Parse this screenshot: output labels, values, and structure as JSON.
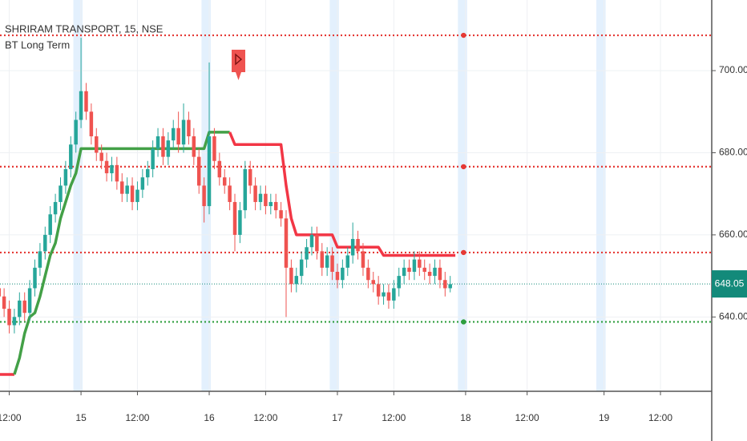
{
  "chart_data": {
    "type": "candlestick",
    "title": "SHRIRAM TRANSPORT, 15, NSE",
    "up_color": "#26a69a",
    "down_color": "#ef5350",
    "grid": true,
    "xlim": [
      -15.8,
      123
    ],
    "ylim": [
      621.9,
      717.2
    ],
    "xticks": [
      {
        "value": -14,
        "label": "12:00"
      },
      {
        "value": 0,
        "label": "15"
      },
      {
        "value": 11,
        "label": "12:00"
      },
      {
        "value": 25,
        "label": "16"
      },
      {
        "value": 36,
        "label": "12:00"
      },
      {
        "value": 50,
        "label": "17"
      },
      {
        "value": 61,
        "label": "12:00"
      },
      {
        "value": 75,
        "label": "18"
      },
      {
        "value": 87,
        "label": "12:00"
      },
      {
        "value": 102,
        "label": "19"
      },
      {
        "value": 113,
        "label": "12:00"
      }
    ],
    "yticks": [
      {
        "value": 640,
        "label": "640.00"
      },
      {
        "value": 660,
        "label": "660.00"
      },
      {
        "value": 680,
        "label": "680.00"
      },
      {
        "value": 700,
        "label": "700.00"
      }
    ],
    "x": [
      -16,
      -15,
      -14,
      -13,
      -12,
      -11,
      -10,
      -9,
      -8,
      -7,
      -6,
      -5,
      -4,
      -3,
      -2,
      -1,
      0,
      1,
      2,
      3,
      4,
      5,
      6,
      7,
      8,
      9,
      10,
      11,
      12,
      13,
      14,
      15,
      16,
      17,
      18,
      19,
      20,
      21,
      22,
      23,
      24,
      25,
      26,
      27,
      28,
      29,
      30,
      31,
      32,
      33,
      34,
      35,
      36,
      37,
      38,
      39,
      40,
      41,
      42,
      43,
      44,
      45,
      46,
      47,
      48,
      49,
      50,
      51,
      52,
      53,
      54,
      55,
      56,
      57,
      58,
      59,
      60,
      61,
      62,
      63,
      64,
      65,
      66,
      67,
      68,
      69,
      70,
      71,
      72
    ],
    "open": [
      647,
      645,
      642,
      638,
      640,
      644,
      641,
      647,
      652,
      656,
      660,
      665,
      668,
      672,
      676,
      682,
      688,
      695,
      690,
      684,
      680,
      678,
      675,
      677,
      673,
      670,
      672,
      668,
      671,
      674,
      676,
      681,
      684,
      679,
      683,
      686,
      682,
      688,
      684,
      679,
      672,
      667,
      684,
      678,
      674,
      672,
      668,
      660,
      666,
      676,
      672,
      668,
      670,
      667,
      668,
      666,
      664,
      652,
      648,
      650,
      654,
      657,
      660,
      656,
      652,
      655,
      651,
      649,
      652,
      655,
      659,
      656,
      652,
      649,
      648,
      645,
      646,
      644,
      647,
      650,
      652,
      651,
      654,
      652,
      651,
      650,
      652,
      649,
      647
    ],
    "high": [
      649,
      647,
      644,
      642,
      646,
      646,
      649,
      654,
      658,
      662,
      667,
      670,
      674,
      678,
      684,
      690,
      708,
      697,
      692,
      686,
      682,
      680,
      679,
      679,
      675,
      674,
      674,
      673,
      676,
      678,
      683,
      686,
      686,
      685,
      688,
      690,
      692,
      690,
      686,
      681,
      674,
      702,
      686,
      680,
      676,
      674,
      670,
      668,
      678,
      678,
      674,
      672,
      672,
      670,
      670,
      668,
      666,
      654,
      652,
      656,
      659,
      662,
      662,
      658,
      657,
      657,
      653,
      654,
      657,
      663,
      661,
      658,
      654,
      651,
      650,
      648,
      648,
      649,
      652,
      654,
      654,
      656,
      656,
      654,
      653,
      654,
      654,
      651,
      650
    ],
    "low": [
      643,
      640,
      636,
      636,
      638,
      639,
      639,
      645,
      650,
      654,
      658,
      663,
      666,
      670,
      674,
      680,
      686,
      688,
      682,
      678,
      676,
      673,
      673,
      671,
      668,
      668,
      666,
      666,
      669,
      672,
      674,
      679,
      677,
      677,
      681,
      680,
      680,
      682,
      677,
      670,
      663,
      665,
      676,
      672,
      670,
      666,
      656,
      658,
      664,
      670,
      666,
      666,
      665,
      665,
      664,
      662,
      640,
      646,
      646,
      648,
      652,
      655,
      654,
      650,
      650,
      649,
      647,
      647,
      650,
      653,
      654,
      650,
      647,
      646,
      643,
      643,
      642,
      642,
      645,
      648,
      649,
      649,
      650,
      649,
      648,
      648,
      647,
      645,
      646
    ],
    "close": [
      645,
      642,
      638,
      640,
      644,
      641,
      647,
      652,
      656,
      660,
      665,
      668,
      672,
      676,
      682,
      688,
      695,
      690,
      684,
      680,
      678,
      675,
      677,
      673,
      670,
      672,
      668,
      671,
      674,
      676,
      681,
      684,
      679,
      683,
      686,
      682,
      688,
      684,
      679,
      672,
      667,
      684,
      678,
      674,
      672,
      668,
      660,
      666,
      676,
      672,
      668,
      670,
      667,
      668,
      666,
      664,
      652,
      648,
      650,
      654,
      657,
      660,
      656,
      652,
      655,
      651,
      649,
      652,
      655,
      659,
      656,
      652,
      649,
      648,
      645,
      646,
      644,
      647,
      650,
      652,
      651,
      654,
      652,
      651,
      650,
      652,
      649,
      647,
      648
    ],
    "indicator": {
      "name": "BT Long Term",
      "segments": [
        {
          "color": "#f23645",
          "x": [
            -16,
            -13
          ],
          "values": [
            626,
            626
          ]
        },
        {
          "color": "#43a047",
          "x": [
            -13,
            -12,
            -11,
            -10,
            -9,
            -8,
            -7,
            -6,
            -5,
            -4,
            -3,
            -2,
            -1,
            0,
            24,
            25,
            29
          ],
          "values": [
            626,
            630,
            636,
            640,
            641,
            645,
            650,
            655,
            658,
            664,
            668,
            672,
            675,
            681,
            681,
            685,
            685
          ]
        },
        {
          "color": "#f23645",
          "x": [
            29,
            30,
            39,
            40,
            41,
            42,
            49,
            50,
            58,
            59,
            73
          ],
          "values": [
            685,
            682,
            682,
            672,
            664,
            660,
            660,
            657,
            657,
            655,
            655
          ]
        }
      ]
    },
    "levels": [
      {
        "value": 708.6,
        "color": "#e53935"
      },
      {
        "value": 676.6,
        "color": "#e53935"
      },
      {
        "value": 655.7,
        "color": "#e53935"
      },
      {
        "value": 638.8,
        "color": "#2e9e3e"
      }
    ],
    "last_price": {
      "value": 648.05,
      "color": "#138a7a"
    }
  }
}
